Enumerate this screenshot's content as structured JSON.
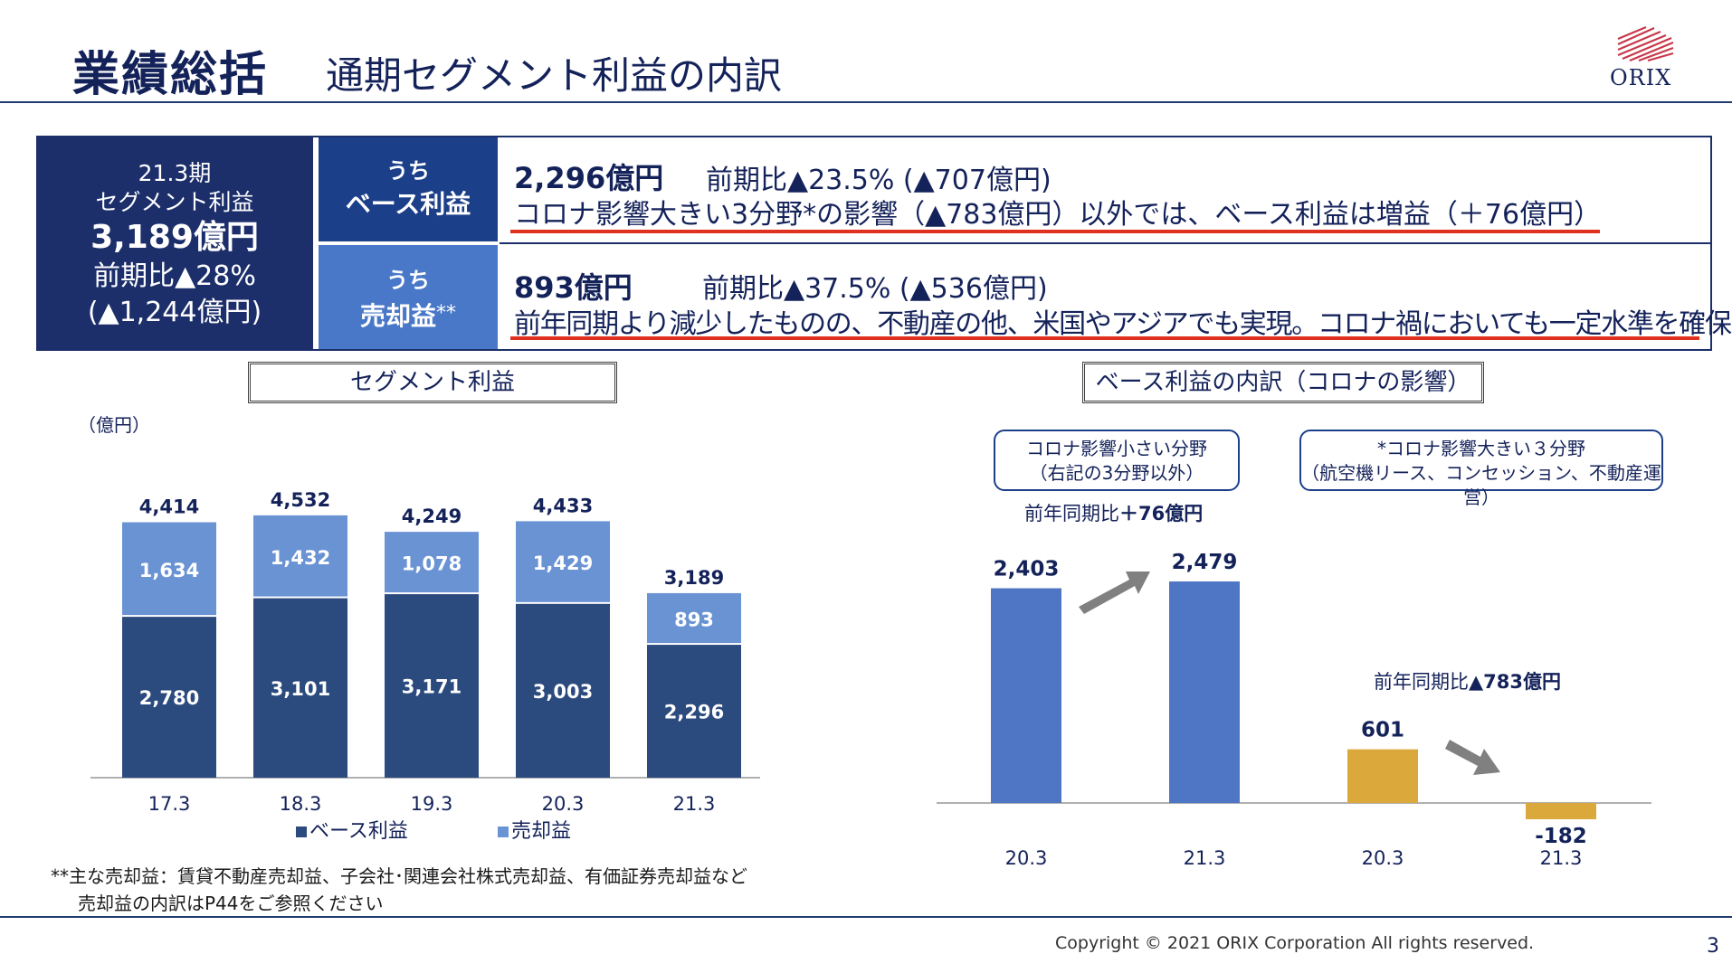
{
  "header": {
    "title": "業績総括",
    "subtitle": "通期セグメント利益の内訳",
    "logo_text": "ORIX"
  },
  "summary": {
    "period": "21.3期",
    "segment_label": "セグメント利益",
    "total": "3,189億円",
    "yoy": "前期比▲28%",
    "yoy_amount": "(▲1,244億円)",
    "base": {
      "label_a": "うち",
      "label_b": "ベース利益",
      "amount": "2,296億円",
      "compare": "前期比▲23.5% (▲707億円)",
      "note": "コロナ影響大きい3分野*の影響（▲783億円）以外では、ベース利益は増益（＋76億円）"
    },
    "sale": {
      "label_a": "うち",
      "label_b": "売却益",
      "label_sup": "**",
      "amount": "893億円",
      "compare": "前期比▲37.5% (▲536億円)",
      "note": "前年同期より減少したものの、不動産の他、米国やアジアでも実現。コロナ禍においても一定水準を確保"
    }
  },
  "left_section": {
    "title": "セグメント利益",
    "unit": "（億円）"
  },
  "right_section": {
    "title": "ベース利益の内訳（コロナの影響）",
    "pill1_line1": "コロナ影響小さい分野",
    "pill1_line2": "（右記の3分野以外）",
    "pill2_line1": "*コロナ影響大きい３分野",
    "pill2_line2": "（航空機リース、コンセッション、不動産運営）",
    "note1_prefix": "前年同期比",
    "note1_value": "＋76億円",
    "note2_prefix": "前年同期比",
    "note2_value": "▲783億円"
  },
  "footnotes": {
    "line1": "**主な売却益：賃貸不動産売却益、子会社･関連会社株式売却益、有価証券売却益など",
    "line2": "売却益の内訳はP44をご参照ください"
  },
  "footer": {
    "copyright": "Copyright © 2021 ORIX Corporation  All rights reserved.",
    "page": "3"
  },
  "colors": {
    "navy": "#1c2f6b",
    "base_bar": "#2b4a7e",
    "sale_bar": "#6a93d4",
    "right_blue": "#4f76c4",
    "right_gold": "#dba93b",
    "redline": "#e0301e"
  },
  "chart_data": [
    {
      "type": "bar",
      "stacked": true,
      "categories": [
        "17.3",
        "18.3",
        "19.3",
        "20.3",
        "21.3"
      ],
      "series": [
        {
          "name": "ベース利益",
          "values": [
            2780,
            3101,
            3171,
            3003,
            2296
          ]
        },
        {
          "name": "売却益",
          "values": [
            1634,
            1432,
            1078,
            1429,
            893
          ]
        }
      ],
      "totals": [
        4414,
        4532,
        4249,
        4433,
        3189
      ],
      "value_labels_base": [
        "2,780",
        "3,101",
        "3,171",
        "3,003",
        "2,296"
      ],
      "value_labels_sale": [
        "1,634",
        "1,432",
        "1,078",
        "1,429",
        "893"
      ],
      "total_labels": [
        "4,414",
        "4,532",
        "4,249",
        "4,433",
        "3,189"
      ],
      "ylabel": "（億円）",
      "ylim": [
        0,
        5000
      ],
      "legend": "bottom"
    },
    {
      "type": "bar",
      "categories": [
        "20.3",
        "21.3",
        "20.3",
        "21.3"
      ],
      "values": [
        2403,
        2479,
        601,
        -182
      ],
      "value_labels": [
        "2,403",
        "2,479",
        "601",
        "-182"
      ],
      "groups": [
        "コロナ影響小さい分野",
        "コロナ影響大きい３分野"
      ],
      "ylim": [
        -500,
        3000
      ]
    }
  ]
}
